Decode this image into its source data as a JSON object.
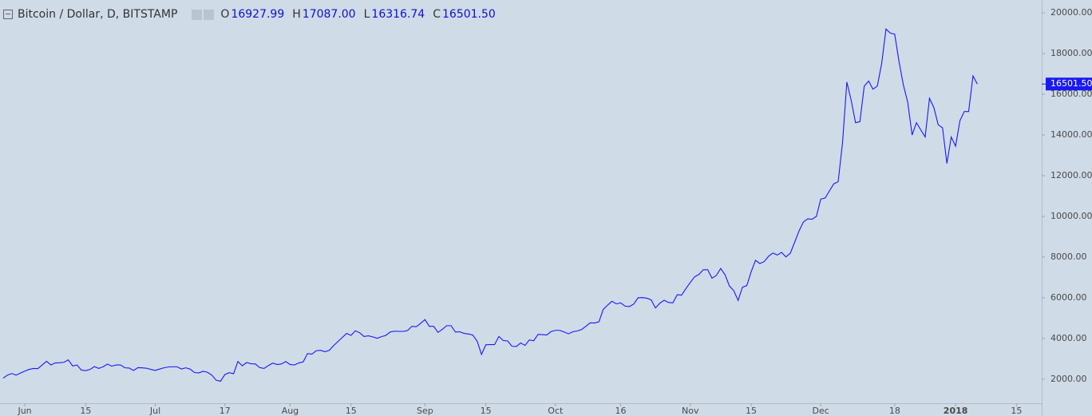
{
  "chart_data": {
    "type": "line",
    "title": "Bitcoin / Dollar, D, BITSTAMP",
    "ohlc": [
      {
        "name": "O",
        "label": "16927.99"
      },
      {
        "name": "H",
        "label": "17087.00"
      },
      {
        "name": "L",
        "label": "16316.74"
      },
      {
        "name": "C",
        "label": "16501.50"
      }
    ],
    "price_label": {
      "value": 16501.5,
      "label": "16501.50"
    },
    "series": [
      {
        "name": "Bitcoin / Dollar",
        "color": "#1a1af0",
        "values": [
          2050,
          2200,
          2280,
          2200,
          2300,
          2400,
          2480,
          2530,
          2520,
          2700,
          2880,
          2700,
          2800,
          2810,
          2830,
          2950,
          2650,
          2700,
          2450,
          2420,
          2480,
          2620,
          2530,
          2610,
          2740,
          2640,
          2700,
          2700,
          2560,
          2550,
          2430,
          2570,
          2560,
          2540,
          2480,
          2430,
          2500,
          2560,
          2600,
          2610,
          2610,
          2500,
          2560,
          2500,
          2330,
          2310,
          2390,
          2340,
          2200,
          1950,
          1900,
          2230,
          2320,
          2270,
          2870,
          2660,
          2820,
          2760,
          2750,
          2570,
          2530,
          2670,
          2790,
          2720,
          2750,
          2870,
          2720,
          2700,
          2800,
          2850,
          3260,
          3230,
          3400,
          3420,
          3350,
          3420,
          3650,
          3850,
          4050,
          4250,
          4150,
          4380,
          4280,
          4100,
          4130,
          4080,
          4010,
          4090,
          4150,
          4320,
          4360,
          4350,
          4350,
          4390,
          4600,
          4580,
          4740,
          4930,
          4600,
          4600,
          4300,
          4450,
          4630,
          4630,
          4320,
          4330,
          4250,
          4220,
          4170,
          3870,
          3220,
          3690,
          3700,
          3700,
          4100,
          3900,
          3880,
          3620,
          3610,
          3780,
          3660,
          3930,
          3890,
          4200,
          4190,
          4170,
          4340,
          4400,
          4400,
          4320,
          4230,
          4330,
          4370,
          4440,
          4600,
          4770,
          4760,
          4820,
          5430,
          5640,
          5830,
          5700,
          5750,
          5590,
          5570,
          5690,
          6000,
          6010,
          5980,
          5900,
          5500,
          5730,
          5880,
          5770,
          5750,
          6150,
          6130,
          6450,
          6750,
          7030,
          7150,
          7380,
          7380,
          6960,
          7100,
          7440,
          7130,
          6580,
          6350,
          5870,
          6520,
          6600,
          7280,
          7840,
          7680,
          7780,
          8040,
          8200,
          8100,
          8230,
          8010,
          8190,
          8730,
          9280,
          9720,
          9880,
          9860,
          10000,
          10850,
          10900,
          11250,
          11600,
          11700,
          13600,
          16600,
          15700,
          14600,
          14650,
          16400,
          16650,
          16250,
          16400,
          17500,
          19200,
          19000,
          18950,
          17600,
          16450,
          15600,
          14000,
          14600,
          14250,
          13900,
          15800,
          15350,
          14500,
          14350,
          12600,
          13900,
          13450,
          14700,
          15150,
          15150,
          16900,
          16501.5
        ]
      }
    ],
    "xlim": [
      -0.7,
      238.8
    ],
    "xticks": [
      {
        "value": 5,
        "label": "Jun"
      },
      {
        "value": 19,
        "label": "15"
      },
      {
        "value": 35,
        "label": "Jul"
      },
      {
        "value": 51,
        "label": "17"
      },
      {
        "value": 66,
        "label": "Aug"
      },
      {
        "value": 80,
        "label": "15"
      },
      {
        "value": 97,
        "label": "Sep"
      },
      {
        "value": 111,
        "label": "15"
      },
      {
        "value": 127,
        "label": "Oct"
      },
      {
        "value": 142,
        "label": "16"
      },
      {
        "value": 158,
        "label": "Nov"
      },
      {
        "value": 172,
        "label": "15"
      },
      {
        "value": 188,
        "label": "Dec"
      },
      {
        "value": 205,
        "label": "18"
      },
      {
        "value": 219,
        "label": "2018",
        "bold": true
      },
      {
        "value": 233,
        "label": "15"
      }
    ],
    "ylim": [
      820,
      20630
    ],
    "yticks": [
      {
        "value": 2000,
        "label": "2000.00"
      },
      {
        "value": 4000,
        "label": "4000.00"
      },
      {
        "value": 6000,
        "label": "6000.00"
      },
      {
        "value": 8000,
        "label": "8000.00"
      },
      {
        "value": 10000,
        "label": "10000.00"
      },
      {
        "value": 12000,
        "label": "12000.00"
      },
      {
        "value": 14000,
        "label": "14000.00"
      },
      {
        "value": 16000,
        "label": "16000.00"
      },
      {
        "value": 18000,
        "label": "18000.00"
      },
      {
        "value": 20000,
        "label": "20000.00"
      }
    ]
  }
}
